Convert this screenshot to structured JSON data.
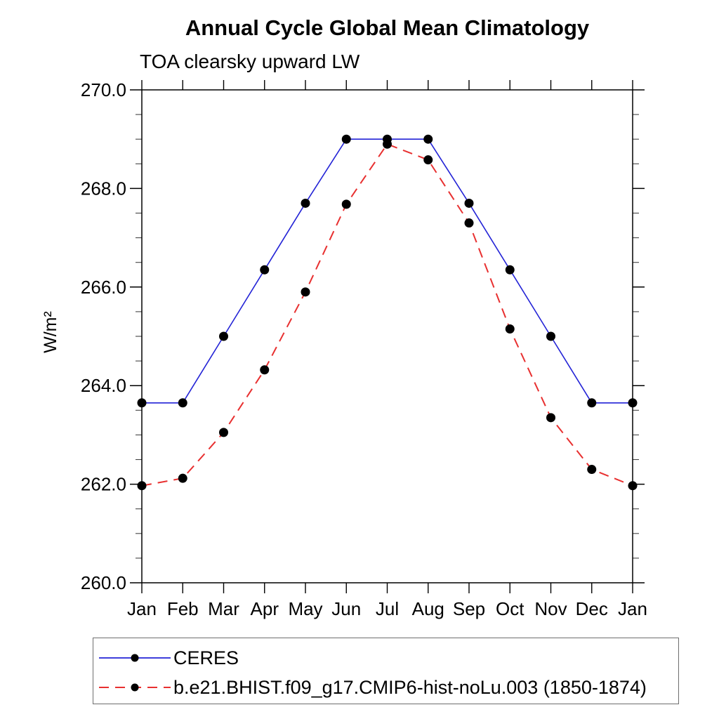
{
  "chart_data": {
    "type": "line",
    "title": "Annual Cycle Global Mean Climatology",
    "subtitle": "TOA clearsky upward LW",
    "ylabel": "W/m²",
    "xlabel": "",
    "x_categories": [
      "Jan",
      "Feb",
      "Mar",
      "Apr",
      "May",
      "Jun",
      "Jul",
      "Aug",
      "Sep",
      "Oct",
      "Nov",
      "Dec",
      "Jan"
    ],
    "ylim": [
      260.0,
      270.0
    ],
    "ytick_major": [
      260.0,
      262.0,
      264.0,
      266.0,
      268.0,
      270.0
    ],
    "ytick_minor_step": 0.5,
    "grid": false,
    "legend_position": "bottom-left-outside",
    "series": [
      {
        "name": "CERES",
        "color": "#2323d6",
        "line_style": "solid",
        "marker": "filled-circle",
        "marker_color": "#000000",
        "values": [
          263.65,
          263.65,
          265.0,
          266.35,
          267.7,
          269.0,
          269.0,
          269.0,
          267.7,
          266.35,
          265.0,
          263.65,
          263.65
        ]
      },
      {
        "name": "b.e21.BHIST.f09_g17.CMIP6-hist-noLu.003 (1850-1874)",
        "color": "#e83030",
        "line_style": "dashed",
        "marker": "filled-circle",
        "marker_color": "#000000",
        "values": [
          261.97,
          262.12,
          263.05,
          264.32,
          265.9,
          267.68,
          268.9,
          268.58,
          267.3,
          265.15,
          263.35,
          262.3,
          261.97
        ]
      }
    ]
  }
}
